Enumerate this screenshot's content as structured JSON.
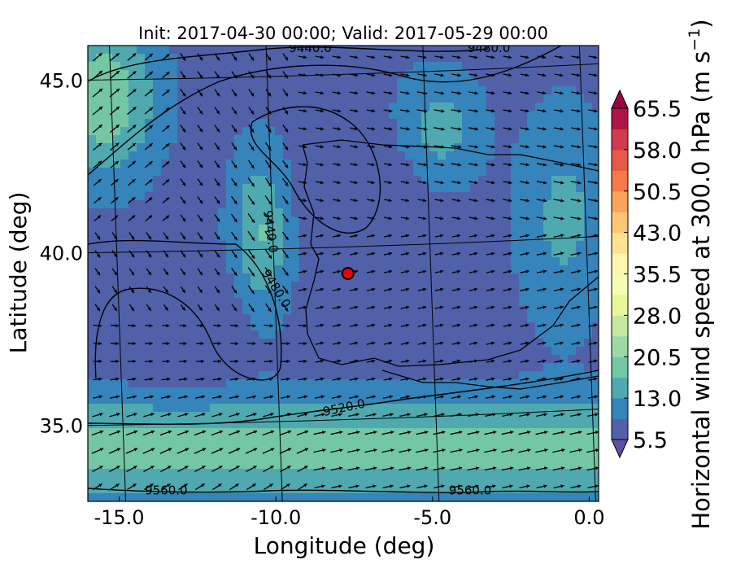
{
  "chart_data": {
    "type": "heatmap",
    "title": "Init: 2017-04-30 00:00; Valid: 2017-05-29 00:00",
    "xlabel": "Longitude (deg)",
    "ylabel": "Latitude (deg)",
    "x_ticks": [
      "-15.0",
      "-10.0",
      "-5.0",
      "0.0"
    ],
    "y_ticks": [
      "45.0",
      "40.0",
      "35.0"
    ],
    "xlim": [
      -16.0,
      0.3
    ],
    "ylim": [
      32.8,
      46.0
    ],
    "colorbar": {
      "label": "Horizontal wind speed at 300.0 hPa (m s$^{-1}$)",
      "label_main": "Horizontal wind speed at 300.0 hPa (m s",
      "label_sup": "−1",
      "label_end": ")",
      "ticks": [
        "5.5",
        "13.0",
        "20.5",
        "28.0",
        "35.5",
        "43.0",
        "50.5",
        "58.0",
        "65.5"
      ],
      "min": 5.5,
      "max": 65.5,
      "colormap": "Spectral_r",
      "extend": "both"
    },
    "contour_field": "geopotential height (m)",
    "contour_labels": [
      {
        "text": "9440.0",
        "lon": -10.3,
        "lat": 40.6,
        "rotation": 82
      },
      {
        "text": "9440.0",
        "lon": -8.9,
        "lat": 46.0,
        "rotation": 0
      },
      {
        "text": "9480.0",
        "lon": -10.1,
        "lat": 38.9,
        "rotation": 58
      },
      {
        "text": "9480.0",
        "lon": -3.2,
        "lat": 46.0,
        "rotation": 0
      },
      {
        "text": "9520.0",
        "lon": -7.8,
        "lat": 35.4,
        "rotation": -12
      },
      {
        "text": "9560.0",
        "lon": -13.5,
        "lat": 33.0,
        "rotation": 0
      },
      {
        "text": "9560.0",
        "lon": -3.8,
        "lat": 33.0,
        "rotation": 0
      }
    ],
    "marker": {
      "lon": -7.7,
      "lat": 39.4,
      "color": "#e8000b"
    },
    "wind_arrows": "black vectors, roughly westerly over the Iberian Peninsula"
  }
}
